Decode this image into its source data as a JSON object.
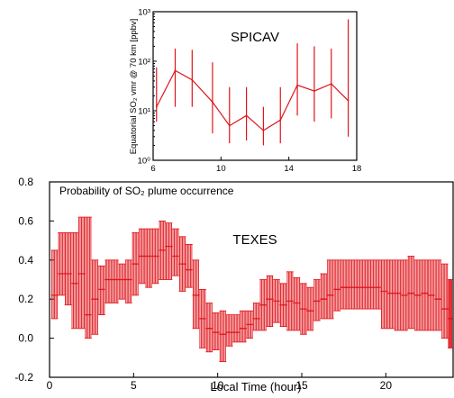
{
  "colors": {
    "series": "#e0151b",
    "axis": "#000000",
    "background": "#ffffff"
  },
  "chart_data": [
    {
      "type": "line",
      "title": "SPICAV",
      "xlabel": "",
      "ylabel": "Equatorial SO₂ vmr @ 70 km [ppbv]",
      "xlim": [
        6,
        18
      ],
      "ylim": [
        1,
        1000
      ],
      "yscale": "log",
      "grid": false,
      "x_ticks": [
        6,
        10,
        14,
        18
      ],
      "x_tick_labels": [
        "6",
        "10",
        "14",
        "18"
      ],
      "y_ticks": [
        1,
        10,
        100,
        1000
      ],
      "y_tick_labels": [
        "10⁰",
        "10¹",
        "10²",
        "10³"
      ],
      "series": [
        {
          "x": [
            6.2,
            7.3,
            8.3,
            9.5,
            10.5,
            11.5,
            12.5,
            13.5,
            14.5,
            15.5,
            16.5,
            17.5
          ],
          "y": [
            12,
            65,
            42,
            15,
            5,
            8,
            4,
            6.5,
            33,
            25,
            35,
            16
          ],
          "low": [
            6,
            12,
            12,
            3.5,
            2.2,
            2.5,
            2,
            2.2,
            8,
            6,
            7,
            3
          ],
          "high": [
            75,
            180,
            170,
            95,
            30,
            30,
            12,
            30,
            230,
            200,
            180,
            700
          ]
        }
      ]
    },
    {
      "type": "scatter",
      "title": "TEXES",
      "annotation": "Probability of SO₂ plume occurrence",
      "xlabel": "Local Time (hour)",
      "ylabel": "",
      "xlim": [
        0,
        24
      ],
      "ylim": [
        -0.2,
        0.8
      ],
      "grid": false,
      "x_ticks": [
        0,
        5,
        10,
        15,
        20
      ],
      "x_tick_labels": [
        "0",
        "5",
        "10",
        "15",
        "20"
      ],
      "y_ticks": [
        -0.2,
        0.0,
        0.2,
        0.4,
        0.6,
        0.8
      ],
      "y_tick_labels": [
        "-0.2",
        "0.0",
        "0.2",
        "0.4",
        "0.6",
        "0.8"
      ],
      "series": [
        {
          "x": [
            0.1,
            0.5,
            0.9,
            1.3,
            1.7,
            2.1,
            2.5,
            2.9,
            3.3,
            3.7,
            4.1,
            4.5,
            4.9,
            5.3,
            5.7,
            6.1,
            6.5,
            6.9,
            7.3,
            7.7,
            8.1,
            8.5,
            8.9,
            9.3,
            9.7,
            10.1,
            10.5,
            10.9,
            11.3,
            11.7,
            12.1,
            12.5,
            12.9,
            13.3,
            13.7,
            14.1,
            14.5,
            14.9,
            15.3,
            15.7,
            16.1,
            16.5,
            16.9,
            17.3,
            17.7,
            18.1,
            18.5,
            18.9,
            19.3,
            19.7,
            20.1,
            20.5,
            20.9,
            21.3,
            21.7,
            22.1,
            22.5,
            22.9,
            23.3,
            23.7
          ],
          "y": [
            0.22,
            0.33,
            0.33,
            0.28,
            0.33,
            0.12,
            0.2,
            0.25,
            0.3,
            0.3,
            0.3,
            0.3,
            0.38,
            0.42,
            0.42,
            0.42,
            0.45,
            0.47,
            0.42,
            0.38,
            0.35,
            0.22,
            0.1,
            0.05,
            0.03,
            0.02,
            0.03,
            0.03,
            0.05,
            0.07,
            0.1,
            0.17,
            0.2,
            0.19,
            0.17,
            0.19,
            0.18,
            0.15,
            0.14,
            0.19,
            0.2,
            0.22,
            0.25,
            0.26,
            0.26,
            0.26,
            0.26,
            0.26,
            0.26,
            0.24,
            0.23,
            0.23,
            0.22,
            0.23,
            0.22,
            0.23,
            0.22,
            0.2,
            0.15,
            0.1
          ],
          "low": [
            0.1,
            0.22,
            0.17,
            0.05,
            0.05,
            0.0,
            0.02,
            0.12,
            0.18,
            0.18,
            0.2,
            0.18,
            0.22,
            0.28,
            0.26,
            0.28,
            0.3,
            0.3,
            0.32,
            0.24,
            0.26,
            0.05,
            -0.05,
            -0.07,
            -0.06,
            -0.12,
            -0.04,
            -0.02,
            -0.02,
            0.0,
            0.04,
            0.04,
            0.06,
            0.08,
            0.06,
            0.04,
            0.04,
            0.02,
            0.04,
            0.09,
            0.1,
            0.1,
            0.14,
            0.15,
            0.15,
            0.15,
            0.15,
            0.15,
            0.15,
            0.05,
            0.05,
            0.04,
            0.04,
            0.05,
            0.04,
            0.04,
            0.04,
            0.04,
            0.0,
            -0.05
          ],
          "high": [
            0.45,
            0.54,
            0.54,
            0.54,
            0.62,
            0.62,
            0.4,
            0.37,
            0.4,
            0.4,
            0.38,
            0.4,
            0.54,
            0.56,
            0.56,
            0.56,
            0.6,
            0.59,
            0.56,
            0.52,
            0.48,
            0.4,
            0.25,
            0.18,
            0.13,
            0.14,
            0.12,
            0.12,
            0.14,
            0.14,
            0.18,
            0.3,
            0.32,
            0.3,
            0.28,
            0.34,
            0.31,
            0.28,
            0.26,
            0.3,
            0.33,
            0.4,
            0.4,
            0.4,
            0.4,
            0.4,
            0.4,
            0.4,
            0.4,
            0.4,
            0.4,
            0.4,
            0.4,
            0.42,
            0.4,
            0.4,
            0.4,
            0.4,
            0.38,
            0.3
          ]
        }
      ]
    }
  ]
}
